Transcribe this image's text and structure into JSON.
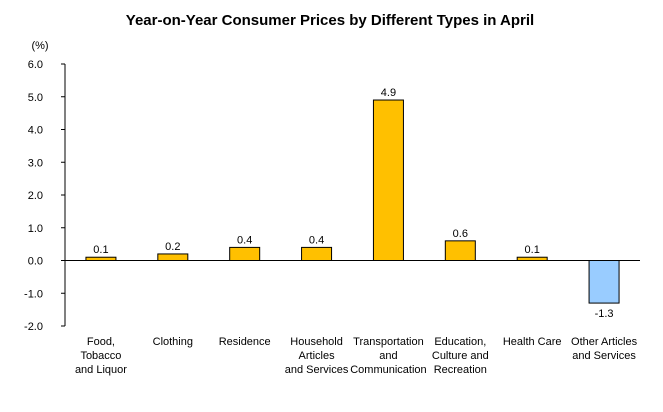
{
  "chart_data": {
    "type": "bar",
    "title": "Year-on-Year Consumer Prices by Different Types in April",
    "y_label": "(%)",
    "categories": [
      "Food,\nTobacco\nand Liquor",
      "Clothing",
      "Residence",
      "Household\nArticles\nand Services",
      "Transportation\nand\nCommunication",
      "Education,\nCulture and\nRecreation",
      "Health Care",
      "Other Articles\nand Services"
    ],
    "values": [
      0.1,
      0.2,
      0.4,
      0.4,
      4.9,
      0.6,
      0.1,
      -1.3
    ],
    "color": "#ffc000",
    "negative_color": "#99ccff",
    "ylim": [
      -2,
      6
    ],
    "yticks": [
      {
        "value": -2,
        "label": "-2.0"
      },
      {
        "value": -1,
        "label": "-1.0"
      },
      {
        "value": 0,
        "label": "0.0"
      },
      {
        "value": 1,
        "label": "1.0"
      },
      {
        "value": 2,
        "label": "2.0"
      },
      {
        "value": 3,
        "label": "3.0"
      },
      {
        "value": 4,
        "label": "4.0"
      },
      {
        "value": 5,
        "label": "5.0"
      },
      {
        "value": 6,
        "label": "6.0"
      }
    ],
    "grid": false
  }
}
